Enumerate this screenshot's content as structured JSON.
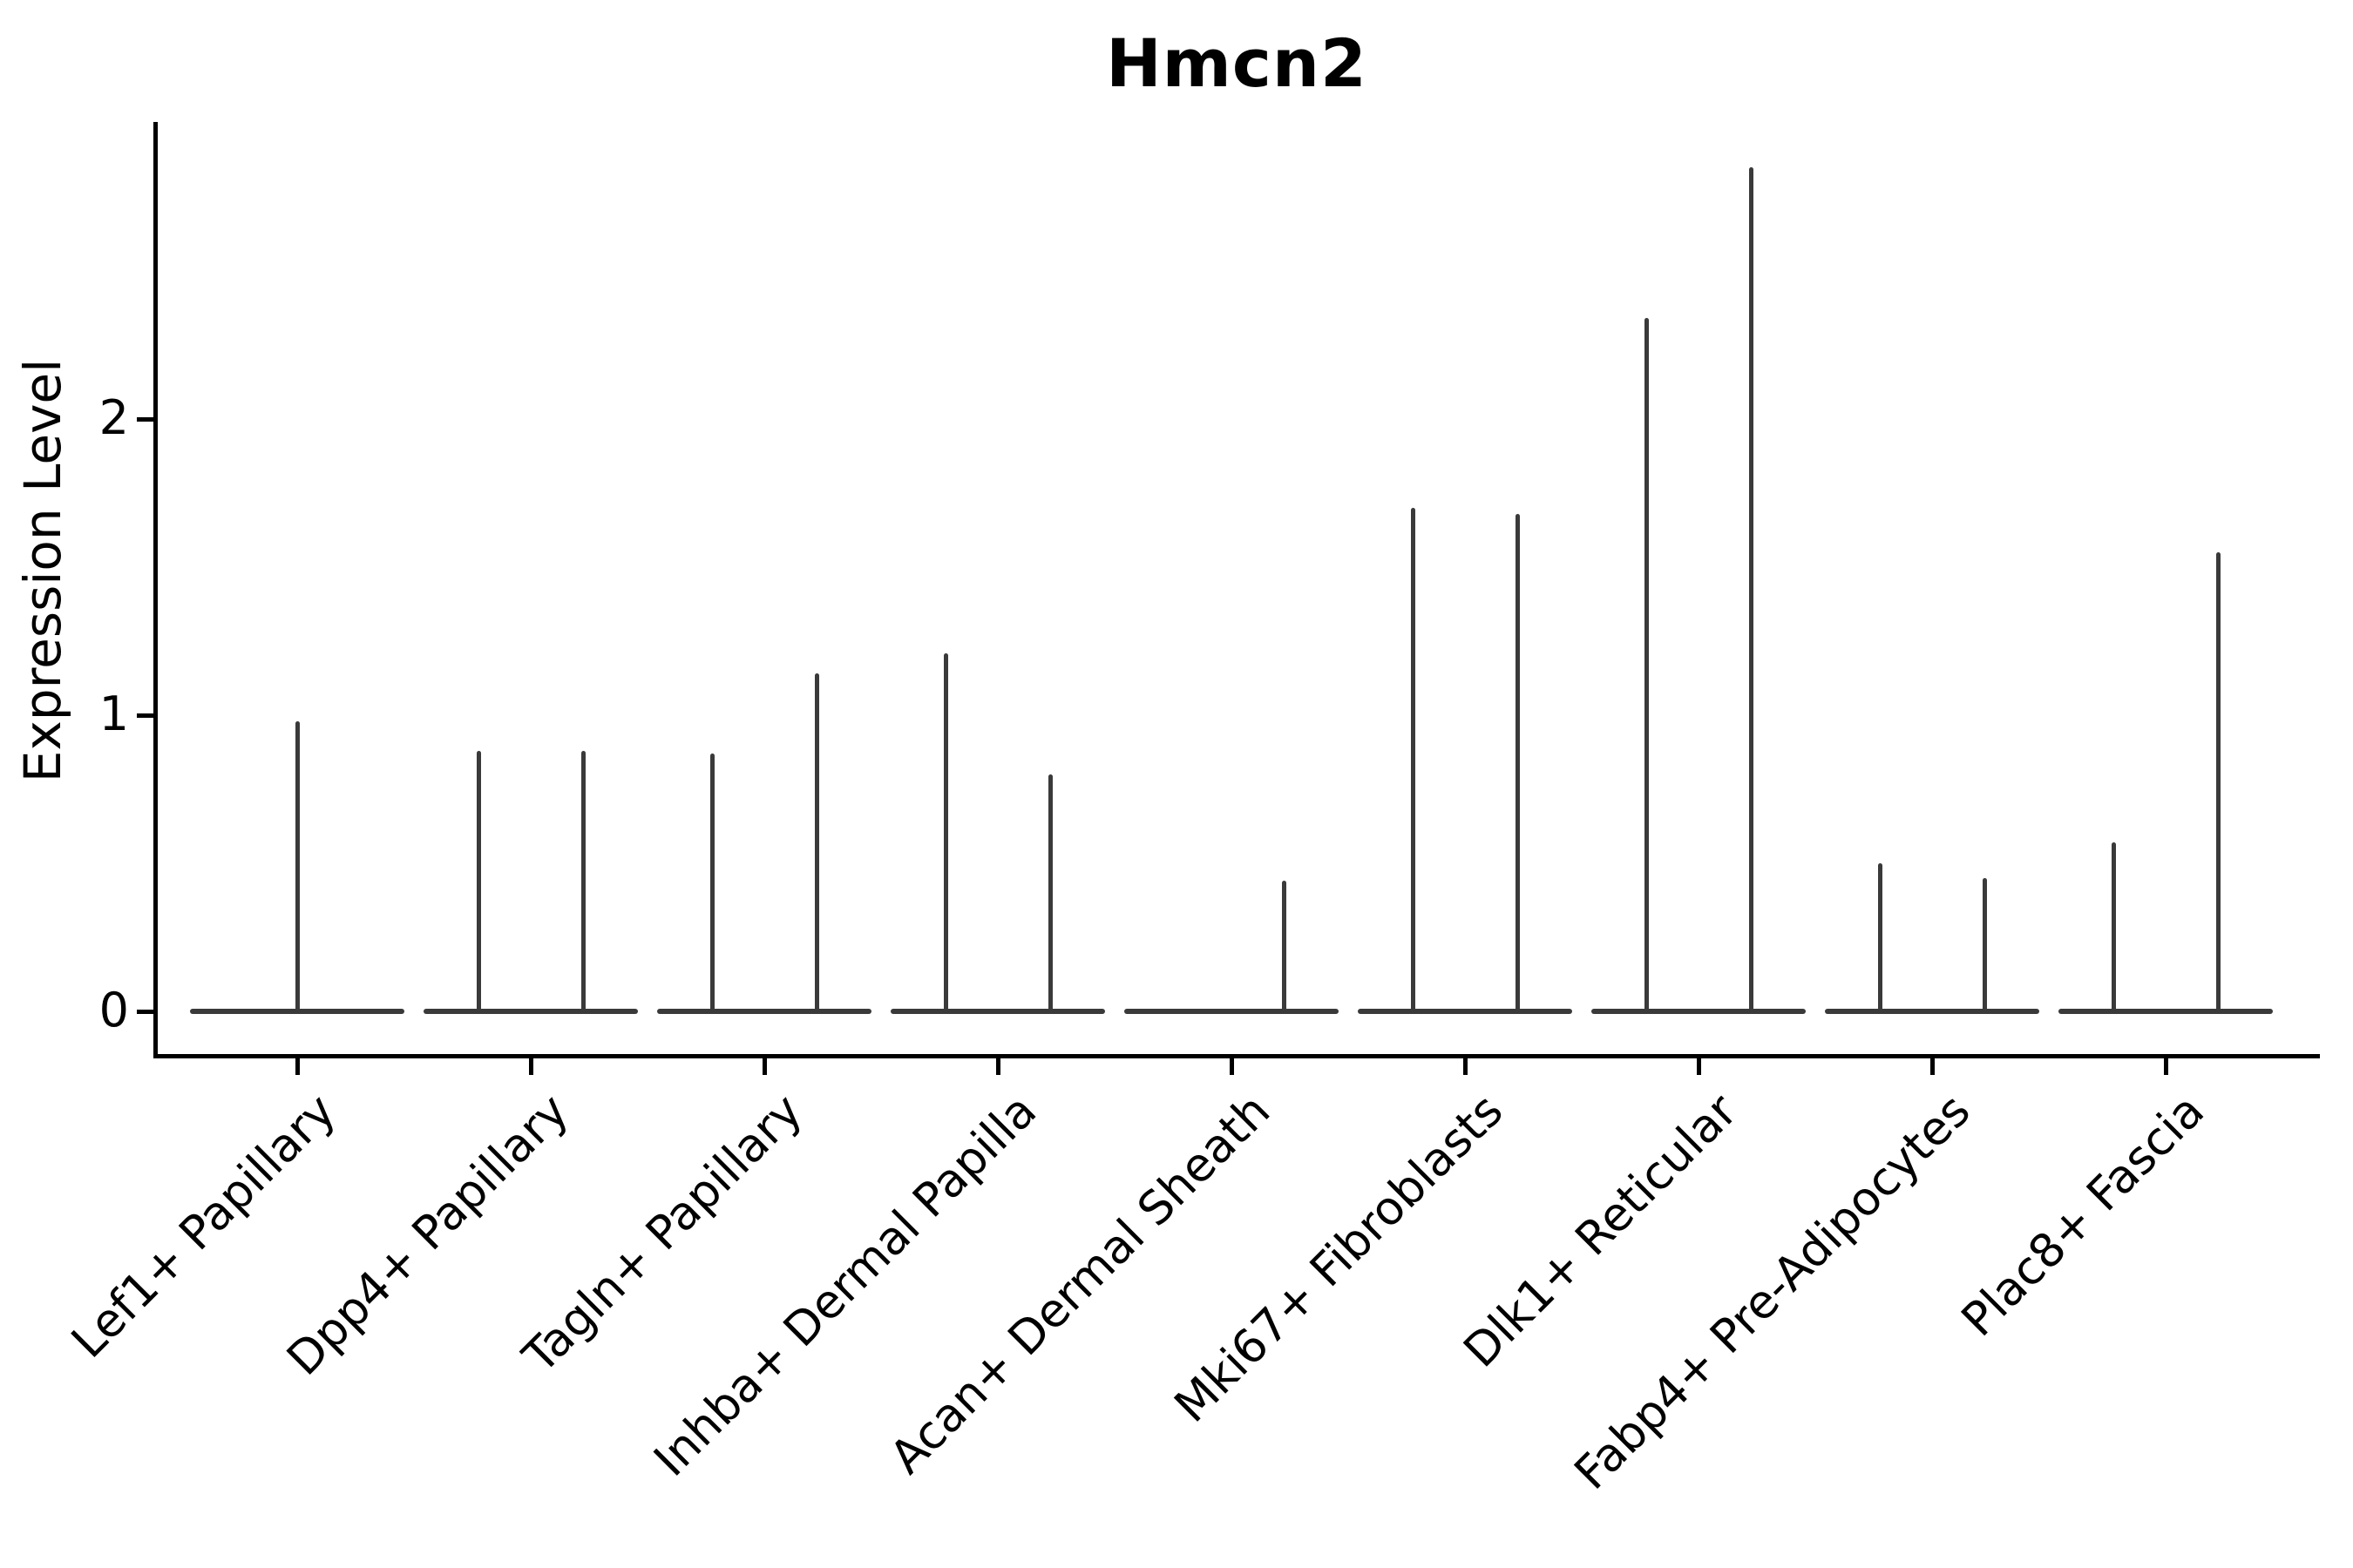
{
  "title": "Hmcn2",
  "axes": {
    "ylabel": "Expression Level",
    "yticks": [
      "0",
      "1",
      "2"
    ]
  },
  "chart_data": {
    "type": "violin",
    "title": "Hmcn2",
    "xlabel": "",
    "ylabel": "Expression Level",
    "ylim": [
      0,
      3.0
    ],
    "yticks": [
      0,
      1,
      2
    ],
    "grid": "off",
    "legend": "none",
    "description": "Seurat-style split violin plot of Hmcn2 expression; violins collapse to a flat zero baseline with a thin density spike up to the maximum expression value. Most categories contain two side-by-side (dodged) violins.",
    "categories": [
      "Lef1+ Papillary",
      "Dpp4+ Papillary",
      "Tagln+ Papillary",
      "Inhba+ Dermal Papilla",
      "Acan+ Dermal Sheath",
      "Mki67+ Fibroblasts",
      "Dlk1+ Reticular",
      "Fabp4+ Pre-Adipocytes",
      "Plac8+ Fascia"
    ],
    "violins": [
      {
        "category": "Lef1+ Papillary",
        "spikes": [
          {
            "group": "single",
            "max": 0.98
          }
        ]
      },
      {
        "category": "Dpp4+ Papillary",
        "spikes": [
          {
            "group": "left",
            "max": 0.88
          },
          {
            "group": "right",
            "max": 0.88
          }
        ]
      },
      {
        "category": "Tagln+ Papillary",
        "spikes": [
          {
            "group": "left",
            "max": 0.87
          },
          {
            "group": "right",
            "max": 1.14
          }
        ]
      },
      {
        "category": "Inhba+ Dermal Papilla",
        "spikes": [
          {
            "group": "left",
            "max": 1.21
          },
          {
            "group": "right",
            "max": 0.8
          }
        ]
      },
      {
        "category": "Acan+ Dermal Sheath",
        "spikes": [
          {
            "group": "right",
            "max": 0.44
          }
        ]
      },
      {
        "category": "Mki67+ Fibroblasts",
        "spikes": [
          {
            "group": "left",
            "max": 1.7
          },
          {
            "group": "right",
            "max": 1.68
          }
        ]
      },
      {
        "category": "Dlk1+ Reticular",
        "spikes": [
          {
            "group": "left",
            "max": 2.34
          },
          {
            "group": "right",
            "max": 2.85
          }
        ]
      },
      {
        "category": "Fabp4+ Pre-Adipocytes",
        "spikes": [
          {
            "group": "left",
            "max": 0.5
          },
          {
            "group": "right",
            "max": 0.45
          }
        ]
      },
      {
        "category": "Plac8+ Fascia",
        "spikes": [
          {
            "group": "left",
            "max": 0.57
          },
          {
            "group": "right",
            "max": 1.55
          }
        ]
      }
    ],
    "colors": {
      "violin": "#3a3a3a",
      "axis": "#000000",
      "text": "#000000",
      "background": "#ffffff"
    }
  }
}
